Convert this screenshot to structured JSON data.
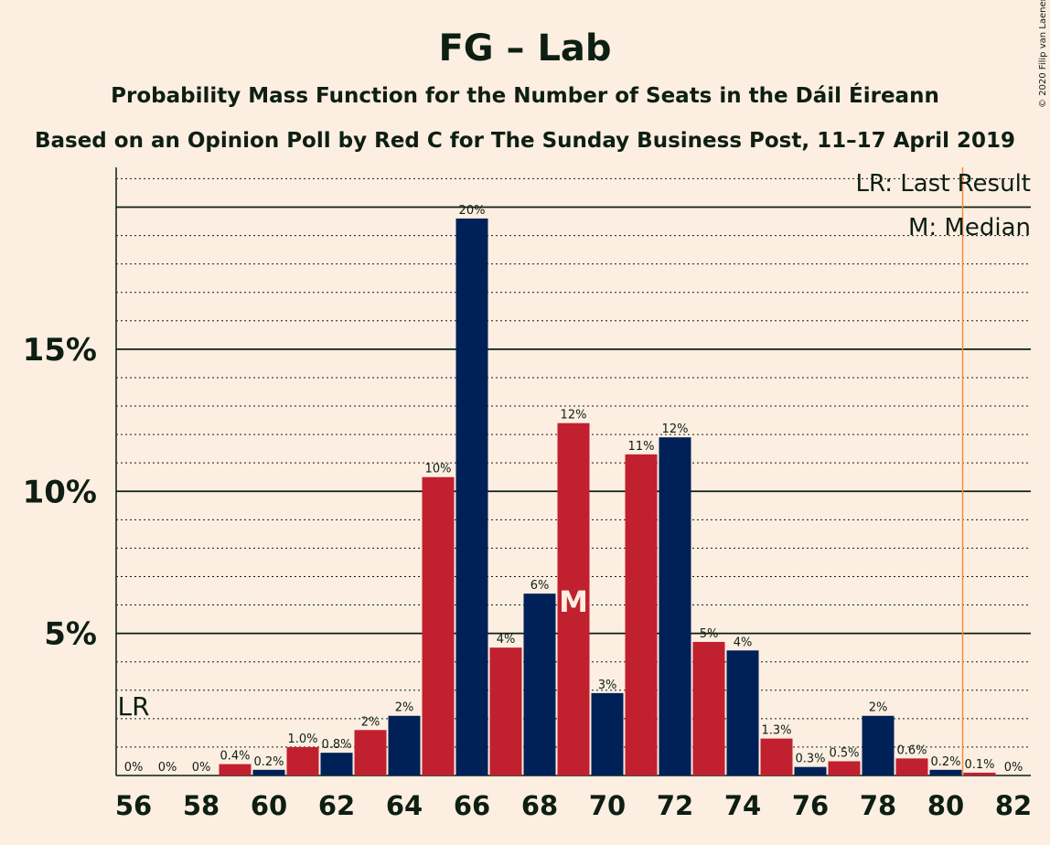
{
  "chart_data": {
    "type": "bar",
    "title": "FG – Lab",
    "subtitle_lines": [
      "Probability Mass Function for the Number of Seats in the Dáil Éireann",
      "Based on an Opinion Poll by Red C for The Sunday Business Post, 11–17 April 2019"
    ],
    "copyright": "© 2020 Filip van Laenen",
    "x_seats": [
      56,
      57,
      58,
      59,
      60,
      61,
      62,
      63,
      64,
      65,
      66,
      67,
      68,
      69,
      70,
      71,
      72,
      73,
      74,
      75,
      76,
      77,
      78,
      79,
      80,
      81,
      82
    ],
    "values": [
      0,
      0,
      0,
      0.4,
      0.2,
      1.0,
      0.8,
      1.6,
      2.1,
      10.5,
      19.6,
      4.5,
      6.4,
      12.4,
      2.9,
      11.3,
      11.9,
      4.7,
      4.4,
      1.3,
      0.3,
      0.5,
      2.1,
      0.6,
      0.2,
      0.1,
      0
    ],
    "value_labels": [
      "0%",
      "0%",
      "0%",
      "0.4%",
      "0.2%",
      "1.0%",
      "0.8%",
      "2%",
      "2%",
      "10%",
      "20%",
      "4%",
      "6%",
      "12%",
      "3%",
      "11%",
      "12%",
      "5%",
      "4%",
      "1.3%",
      "0.3%",
      "0.5%",
      "2%",
      "0.6%",
      "0.2%",
      "0.1%",
      "0%"
    ],
    "xtick_labels": [
      "56",
      "58",
      "60",
      "62",
      "64",
      "66",
      "68",
      "70",
      "72",
      "74",
      "76",
      "78",
      "80",
      "82"
    ],
    "ytick_values": [
      5,
      10,
      15
    ],
    "ytick_labels": [
      "5%",
      "10%",
      "15%"
    ],
    "ylim": [
      0,
      21.4
    ],
    "last_result_seat": 56,
    "last_result_marker": "LR",
    "median_seat": 69,
    "median_marker": "M",
    "majority_line_seat": 80.5,
    "legend": [
      "LR: Last Result",
      "M: Median"
    ],
    "colors": {
      "background": "#FDEEE2",
      "party_a": "#002157",
      "party_b": "#C1202F",
      "text": "#0D1F12",
      "majority_line": "#F28C3C"
    }
  }
}
